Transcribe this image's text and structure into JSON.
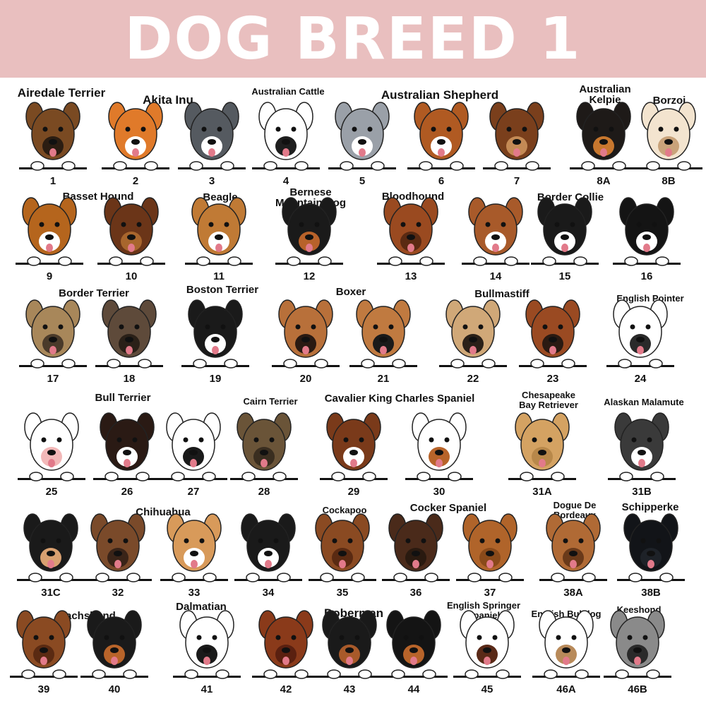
{
  "header": {
    "title": "DOG BREED 1",
    "background": "#e9bfbf"
  },
  "labels": [
    {
      "lines": [
        "Airedale Terrier"
      ]
    },
    {
      "lines": [
        "Akita Inu"
      ]
    },
    {
      "lines": [
        "Australian Cattle"
      ]
    },
    {
      "lines": [
        "Australian Shepherd"
      ]
    },
    {
      "lines": [
        "Australian",
        "Kelpie"
      ]
    },
    {
      "lines": [
        "Borzoi"
      ]
    },
    {
      "lines": [
        "Basset Hound"
      ]
    },
    {
      "lines": [
        "Beagle"
      ]
    },
    {
      "lines": [
        "Bernese",
        "Mountain Dog"
      ]
    },
    {
      "lines": [
        "Bloodhound"
      ]
    },
    {
      "lines": [
        "Border Collie"
      ]
    },
    {
      "lines": [
        "Border Terrier"
      ]
    },
    {
      "lines": [
        "Boston Terrier"
      ]
    },
    {
      "lines": [
        "Boxer"
      ]
    },
    {
      "lines": [
        "Bullmastiff"
      ]
    },
    {
      "lines": [
        "English Pointer"
      ]
    },
    {
      "lines": [
        "Bull Terrier"
      ]
    },
    {
      "lines": [
        "Cairn Terrier"
      ]
    },
    {
      "lines": [
        "Cavalier King Charles Spaniel"
      ]
    },
    {
      "lines": [
        "Chesapeake",
        "Bay Retriever"
      ]
    },
    {
      "lines": [
        "Alaskan Malamute"
      ]
    },
    {
      "lines": [
        "Chihuahua"
      ]
    },
    {
      "lines": [
        "Cockapoo"
      ]
    },
    {
      "lines": [
        "Cocker Spaniel"
      ]
    },
    {
      "lines": [
        "Dogue De",
        "Bordeaux"
      ]
    },
    {
      "lines": [
        "Schipperke"
      ]
    },
    {
      "lines": [
        "Dachshund"
      ]
    },
    {
      "lines": [
        "Dalmatian"
      ]
    },
    {
      "lines": [
        "Doberman"
      ]
    },
    {
      "lines": [
        "English Springer",
        "Spaniel"
      ]
    },
    {
      "lines": [
        "English Bulldog"
      ]
    },
    {
      "lines": [
        "Keeshond"
      ]
    }
  ],
  "dogs": [
    {
      "number": "1",
      "coat": "#7a4a22",
      "accent": "#2b1d12"
    },
    {
      "number": "2",
      "coat": "#e07a2a",
      "accent": "#ffffff"
    },
    {
      "number": "3",
      "coat": "#555a60",
      "accent": "#ffffff"
    },
    {
      "number": "4",
      "coat": "#ffffff",
      "accent": "#1e1e1e"
    },
    {
      "number": "5",
      "coat": "#9aa0a8",
      "accent": "#ffffff"
    },
    {
      "number": "6",
      "coat": "#b05a22",
      "accent": "#ffffff"
    },
    {
      "number": "7",
      "coat": "#7a3f1c",
      "accent": "#c48a55"
    },
    {
      "number": "8A",
      "coat": "#1e1a18",
      "accent": "#c8772e"
    },
    {
      "number": "8B",
      "coat": "#f3e4cf",
      "accent": "#c9a37a"
    },
    {
      "number": "9",
      "coat": "#b5651d",
      "accent": "#ffffff"
    },
    {
      "number": "10",
      "coat": "#6b3518",
      "accent": "#a8662d"
    },
    {
      "number": "11",
      "coat": "#c07a35",
      "accent": "#ffffff"
    },
    {
      "number": "12",
      "coat": "#1a1a1a",
      "accent": "#b8622a"
    },
    {
      "number": "13",
      "coat": "#9a4a20",
      "accent": "#5a2a12"
    },
    {
      "number": "14",
      "coat": "#a85a2a",
      "accent": "#ffffff"
    },
    {
      "number": "15",
      "coat": "#1a1a1a",
      "accent": "#ffffff"
    },
    {
      "number": "16",
      "coat": "#141414",
      "accent": "#ffffff"
    },
    {
      "number": "17",
      "coat": "#a8875a",
      "accent": "#4a3a2a"
    },
    {
      "number": "18",
      "coat": "#5e4a3a",
      "accent": "#2a2018"
    },
    {
      "number": "19",
      "coat": "#1a1a1a",
      "accent": "#ffffff"
    },
    {
      "number": "20",
      "coat": "#b8703a",
      "accent": "#2a1a12"
    },
    {
      "number": "21",
      "coat": "#c07a40",
      "accent": "#1a1a1a"
    },
    {
      "number": "22",
      "coat": "#d0a878",
      "accent": "#2a2018"
    },
    {
      "number": "23",
      "coat": "#9a4a22",
      "accent": "#2a1a12"
    },
    {
      "number": "24",
      "coat": "#ffffff",
      "accent": "#2a2a2a"
    },
    {
      "number": "25",
      "coat": "#ffffff",
      "accent": "#f2b8b8"
    },
    {
      "number": "26",
      "coat": "#2a1a14",
      "accent": "#ffffff"
    },
    {
      "number": "27",
      "coat": "#ffffff",
      "accent": "#1a1a1a"
    },
    {
      "number": "28",
      "coat": "#6a5438",
      "accent": "#3a2e20"
    },
    {
      "number": "29",
      "coat": "#7a3a1a",
      "accent": "#ffffff"
    },
    {
      "number": "30",
      "coat": "#ffffff",
      "accent": "#b8642a"
    },
    {
      "number": "31A",
      "coat": "#d4a262",
      "accent": "#b8884a"
    },
    {
      "number": "31B",
      "coat": "#3a3a3a",
      "accent": "#ffffff"
    },
    {
      "number": "31C",
      "coat": "#1a1a1a",
      "accent": "#d8a070"
    },
    {
      "number": "32",
      "coat": "#7a4a2a",
      "accent": "#3a2418"
    },
    {
      "number": "33",
      "coat": "#d89a5a",
      "accent": "#ffffff"
    },
    {
      "number": "34",
      "coat": "#1a1a1a",
      "accent": "#ffffff"
    },
    {
      "number": "35",
      "coat": "#8a4a22",
      "accent": "#5a2a12"
    },
    {
      "number": "36",
      "coat": "#4a2a1a",
      "accent": "#2a1a10"
    },
    {
      "number": "37",
      "coat": "#b0642a",
      "accent": "#8a4a1a"
    },
    {
      "number": "38A",
      "coat": "#b06a35",
      "accent": "#6a3a1a"
    },
    {
      "number": "38B",
      "coat": "#121418",
      "accent": "#1e2228"
    },
    {
      "number": "39",
      "coat": "#8a4a22",
      "accent": "#5a2a12"
    },
    {
      "number": "40",
      "coat": "#1a1a1a",
      "accent": "#b8642a"
    },
    {
      "number": "41",
      "coat": "#ffffff",
      "accent": "#1a1a1a"
    },
    {
      "number": "42",
      "coat": "#8a3a1a",
      "accent": "#5a2010"
    },
    {
      "number": "43",
      "coat": "#1a1a1a",
      "accent": "#a85a2a"
    },
    {
      "number": "44",
      "coat": "#141414",
      "accent": "#b8642a"
    },
    {
      "number": "45",
      "coat": "#ffffff",
      "accent": "#5a2a18"
    },
    {
      "number": "46A",
      "coat": "#ffffff",
      "accent": "#b88a5a"
    },
    {
      "number": "46B",
      "coat": "#8a8a8a",
      "accent": "#2a2a2a"
    }
  ]
}
